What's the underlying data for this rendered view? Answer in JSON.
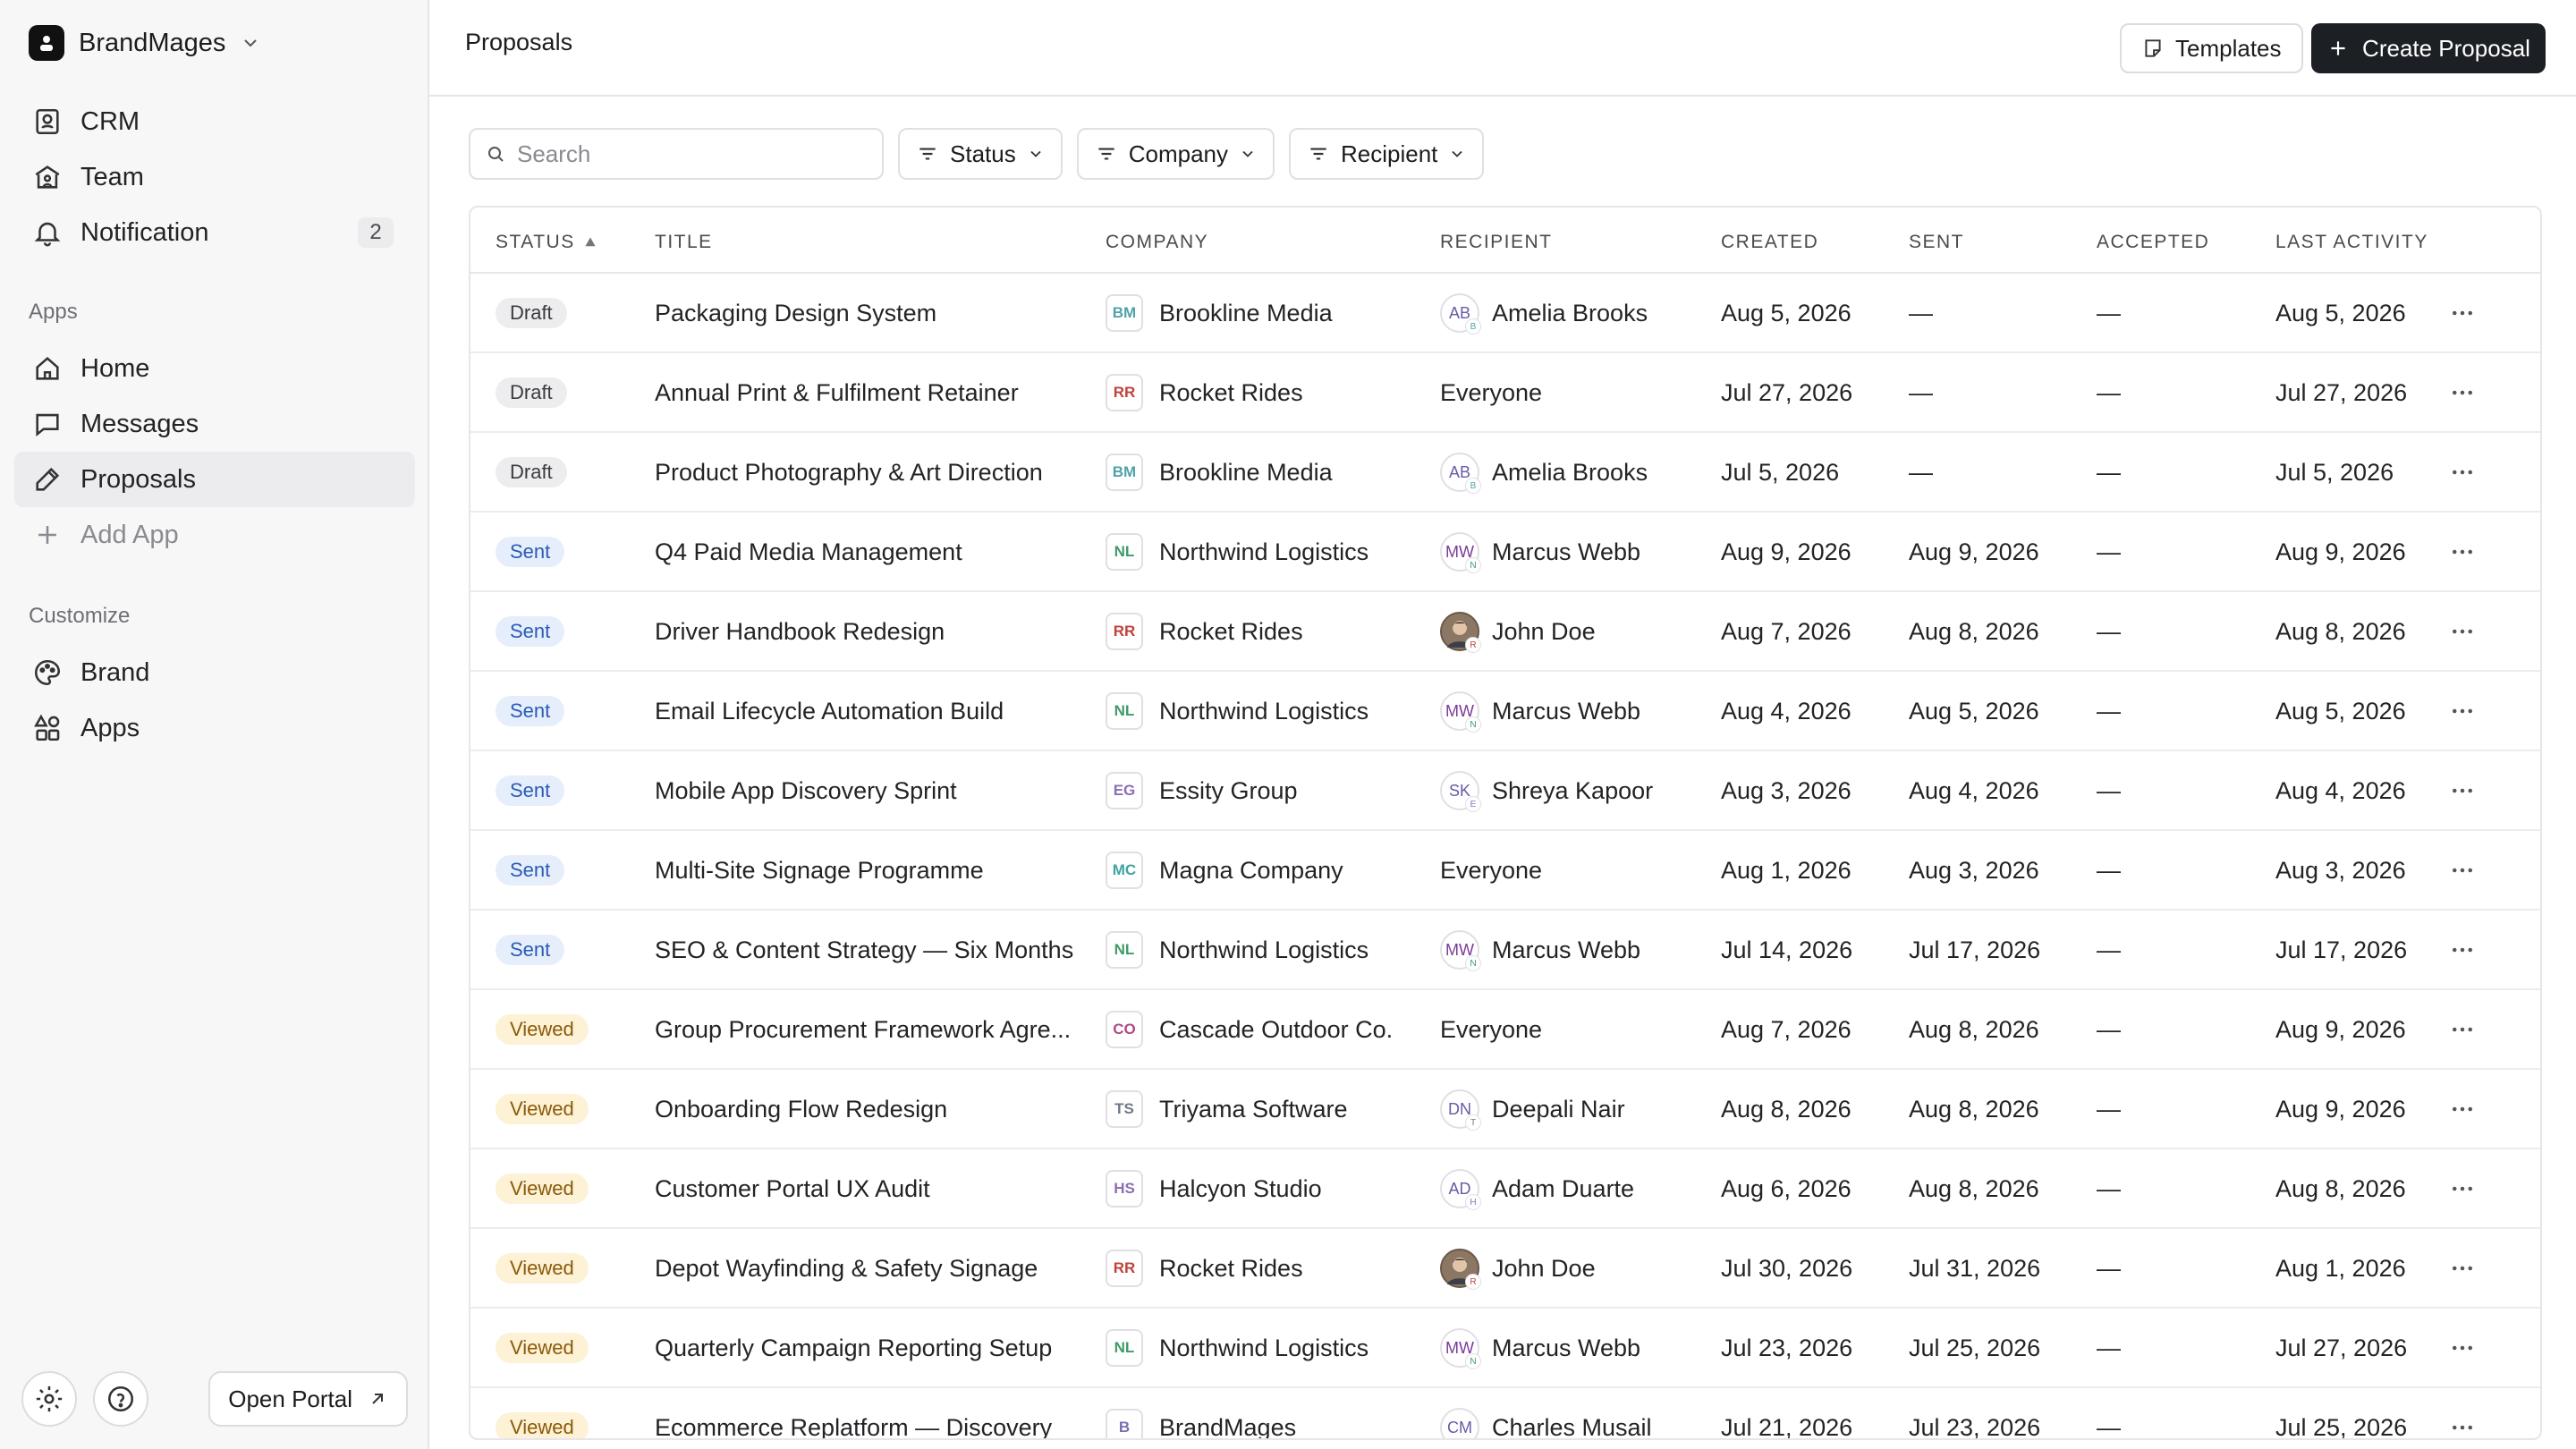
{
  "sidebar": {
    "workspace": "BrandMages",
    "top_nav": [
      {
        "label": "CRM",
        "icon": "crm-icon"
      },
      {
        "label": "Team",
        "icon": "team-icon"
      },
      {
        "label": "Notification",
        "icon": "bell-icon",
        "badge": "2"
      }
    ],
    "apps_label": "Apps",
    "apps_nav": [
      {
        "label": "Home",
        "icon": "home-icon"
      },
      {
        "label": "Messages",
        "icon": "message-icon"
      },
      {
        "label": "Proposals",
        "icon": "pencil-icon",
        "active": true
      },
      {
        "label": "Add App",
        "icon": "plus-icon"
      }
    ],
    "customize_label": "Customize",
    "customize_nav": [
      {
        "label": "Brand",
        "icon": "palette-icon"
      },
      {
        "label": "Apps",
        "icon": "shapes-icon"
      }
    ],
    "open_portal": "Open Portal"
  },
  "header": {
    "title": "Proposals",
    "templates_label": "Templates",
    "create_label": "Create Proposal"
  },
  "filters": {
    "search_placeholder": "Search",
    "status": "Status",
    "company": "Company",
    "recipient": "Recipient"
  },
  "table": {
    "columns": {
      "status": "STATUS",
      "title": "TITLE",
      "company": "COMPANY",
      "recipient": "RECIPIENT",
      "created": "CREATED",
      "sent": "SENT",
      "accepted": "ACCEPTED",
      "last_activity": "LAST ACTIVITY"
    },
    "rows": [
      {
        "status": "Draft",
        "title": "Packaging Design System",
        "company_abbr": "BM",
        "company": "Brookline Media",
        "recipient_abbr": "AB",
        "recipient_mini": "B",
        "recipient": "Amelia Brooks",
        "created": "Aug 5, 2026",
        "sent": "—",
        "accepted": "—",
        "last": "Aug 5, 2026"
      },
      {
        "status": "Draft",
        "title": "Annual Print & Fulfilment Retainer",
        "company_abbr": "RR",
        "company": "Rocket Rides",
        "recipient_abbr": "",
        "recipient_mini": "",
        "recipient": "Everyone",
        "created": "Jul 27, 2026",
        "sent": "—",
        "accepted": "—",
        "last": "Jul 27, 2026"
      },
      {
        "status": "Draft",
        "title": "Product Photography & Art Direction",
        "company_abbr": "BM",
        "company": "Brookline Media",
        "recipient_abbr": "AB",
        "recipient_mini": "B",
        "recipient": "Amelia Brooks",
        "created": "Jul 5, 2026",
        "sent": "—",
        "accepted": "—",
        "last": "Jul 5, 2026"
      },
      {
        "status": "Sent",
        "title": "Q4 Paid Media Management",
        "company_abbr": "NL",
        "company": "Northwind Logistics",
        "recipient_abbr": "MW",
        "recipient_mini": "N",
        "recipient": "Marcus Webb",
        "created": "Aug 9, 2026",
        "sent": "Aug 9, 2026",
        "accepted": "—",
        "last": "Aug 9, 2026"
      },
      {
        "status": "Sent",
        "title": "Driver Handbook Redesign",
        "company_abbr": "RR",
        "company": "Rocket Rides",
        "recipient_abbr": "photo",
        "recipient_mini": "R",
        "recipient": "John Doe",
        "created": "Aug 7, 2026",
        "sent": "Aug 8, 2026",
        "accepted": "—",
        "last": "Aug 8, 2026"
      },
      {
        "status": "Sent",
        "title": "Email Lifecycle Automation Build",
        "company_abbr": "NL",
        "company": "Northwind Logistics",
        "recipient_abbr": "MW",
        "recipient_mini": "N",
        "recipient": "Marcus Webb",
        "created": "Aug 4, 2026",
        "sent": "Aug 5, 2026",
        "accepted": "—",
        "last": "Aug 5, 2026"
      },
      {
        "status": "Sent",
        "title": "Mobile App Discovery Sprint",
        "company_abbr": "EG",
        "company": "Essity Group",
        "recipient_abbr": "SK",
        "recipient_mini": "E",
        "recipient": "Shreya Kapoor",
        "created": "Aug 3, 2026",
        "sent": "Aug 4, 2026",
        "accepted": "—",
        "last": "Aug 4, 2026"
      },
      {
        "status": "Sent",
        "title": "Multi-Site Signage Programme",
        "company_abbr": "MC",
        "company": "Magna Company",
        "recipient_abbr": "",
        "recipient_mini": "",
        "recipient": "Everyone",
        "created": "Aug 1, 2026",
        "sent": "Aug 3, 2026",
        "accepted": "—",
        "last": "Aug 3, 2026"
      },
      {
        "status": "Sent",
        "title": "SEO & Content Strategy — Six Months",
        "company_abbr": "NL",
        "company": "Northwind Logistics",
        "recipient_abbr": "MW",
        "recipient_mini": "N",
        "recipient": "Marcus Webb",
        "created": "Jul 14, 2026",
        "sent": "Jul 17, 2026",
        "accepted": "—",
        "last": "Jul 17, 2026"
      },
      {
        "status": "Viewed",
        "title": "Group Procurement Framework Agre...",
        "company_abbr": "CO",
        "company": "Cascade Outdoor Co.",
        "recipient_abbr": "",
        "recipient_mini": "",
        "recipient": "Everyone",
        "created": "Aug 7, 2026",
        "sent": "Aug 8, 2026",
        "accepted": "—",
        "last": "Aug 9, 2026"
      },
      {
        "status": "Viewed",
        "title": "Onboarding Flow Redesign",
        "company_abbr": "TS",
        "company": "Triyama Software",
        "recipient_abbr": "DN",
        "recipient_mini": "T",
        "recipient": "Deepali Nair",
        "created": "Aug 8, 2026",
        "sent": "Aug 8, 2026",
        "accepted": "—",
        "last": "Aug 9, 2026"
      },
      {
        "status": "Viewed",
        "title": "Customer Portal UX Audit",
        "company_abbr": "HS",
        "company": "Halcyon Studio",
        "recipient_abbr": "AD",
        "recipient_mini": "H",
        "recipient": "Adam Duarte",
        "created": "Aug 6, 2026",
        "sent": "Aug 8, 2026",
        "accepted": "—",
        "last": "Aug 8, 2026"
      },
      {
        "status": "Viewed",
        "title": "Depot Wayfinding & Safety Signage",
        "company_abbr": "RR",
        "company": "Rocket Rides",
        "recipient_abbr": "photo",
        "recipient_mini": "R",
        "recipient": "John Doe",
        "created": "Jul 30, 2026",
        "sent": "Jul 31, 2026",
        "accepted": "—",
        "last": "Aug 1, 2026"
      },
      {
        "status": "Viewed",
        "title": "Quarterly Campaign Reporting Setup",
        "company_abbr": "NL",
        "company": "Northwind Logistics",
        "recipient_abbr": "MW",
        "recipient_mini": "N",
        "recipient": "Marcus Webb",
        "created": "Jul 23, 2026",
        "sent": "Jul 25, 2026",
        "accepted": "—",
        "last": "Jul 27, 2026"
      },
      {
        "status": "Viewed",
        "title": "Ecommerce Replatform — Discovery",
        "company_abbr": "B",
        "company": "BrandMages",
        "recipient_abbr": "CM",
        "recipient_mini": "",
        "recipient": "Charles Musail",
        "created": "Jul 21, 2026",
        "sent": "Jul 23, 2026",
        "accepted": "—",
        "last": "Jul 25, 2026"
      }
    ]
  },
  "colors": {
    "primary": "#1c1f24",
    "draft_bg": "#ededef",
    "sent_bg": "#e6eefb",
    "sent_text": "#2a5bb8",
    "viewed_bg": "#fdf1d6",
    "viewed_text": "#8a5a08"
  },
  "logo_colors": {
    "BM": "#4fa3a8",
    "RR": "#c0413c",
    "NL": "#3f9a6a",
    "EG": "#8a6fb2",
    "MC": "#3fa3a0",
    "CO": "#b04a86",
    "TS": "#6f7a86",
    "HS": "#8a6fb2",
    "B": "#7a6fb2"
  },
  "avatar_colors": {
    "AB": "#6a5aa8",
    "MW": "#7a3a9a",
    "SK": "#6a5aa8",
    "DN": "#6a5aa8",
    "AD": "#6a5aa8",
    "CM": "#6a5aa8"
  }
}
